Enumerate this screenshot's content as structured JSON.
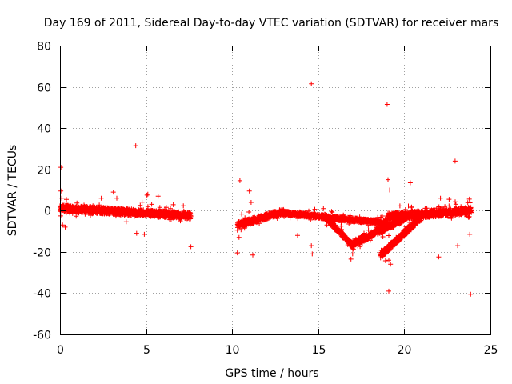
{
  "chart_data": {
    "type": "scatter",
    "title": "Day 169 of 2011, Sidereal Day-to-day VTEC variation (SDTVAR) for receiver mars",
    "xlabel": "GPS time / hours",
    "ylabel": "SDTVAR / TECUs",
    "xlim": [
      0,
      25
    ],
    "ylim": [
      -60,
      80
    ],
    "xticks": [
      "0",
      "5",
      "10",
      "15",
      "20",
      "25"
    ],
    "yticks": [
      "-60",
      "-40",
      "-20",
      "0",
      "20",
      "40",
      "60",
      "80"
    ],
    "grid": true,
    "marker": "+",
    "color": "#ff0000",
    "series": [
      {
        "name": "SDTVAR",
        "bands": [
          {
            "x0": 0.0,
            "x1": 7.6,
            "y0": 1.2,
            "y1": -2.5,
            "spread": 3.2
          },
          {
            "x0": 10.3,
            "x1": 13.0,
            "y0": -7.0,
            "y1": -0.5,
            "spread": 3.0
          },
          {
            "x0": 12.8,
            "x1": 19.0,
            "y0": -1.0,
            "y1": -6.0,
            "spread": 2.0
          },
          {
            "x0": 15.5,
            "x1": 17.0,
            "y0": -4.0,
            "y1": -17.0,
            "spread": 2.5
          },
          {
            "x0": 17.0,
            "x1": 20.0,
            "y0": -16.0,
            "y1": -4.0,
            "spread": 3.0
          },
          {
            "x0": 18.6,
            "x1": 21.0,
            "y0": -22.0,
            "y1": -3.0,
            "spread": 3.0
          },
          {
            "x0": 19.0,
            "x1": 23.9,
            "y0": -3.0,
            "y1": 0.0,
            "spread": 3.5
          }
        ],
        "points": [
          [
            0.05,
            21
          ],
          [
            0.05,
            9.5
          ],
          [
            0.1,
            6
          ],
          [
            0.15,
            -7
          ],
          [
            0.3,
            -8
          ],
          [
            2.4,
            6
          ],
          [
            3.1,
            9
          ],
          [
            3.3,
            6
          ],
          [
            4.4,
            31.5
          ],
          [
            4.45,
            -11
          ],
          [
            4.9,
            -11.5
          ],
          [
            5.05,
            7.5
          ],
          [
            5.1,
            8
          ],
          [
            5.7,
            7
          ],
          [
            7.6,
            -17.5
          ],
          [
            10.45,
            14.5
          ],
          [
            10.3,
            -20.5
          ],
          [
            10.4,
            -13
          ],
          [
            11.0,
            9.5
          ],
          [
            11.1,
            4
          ],
          [
            11.2,
            -21.5
          ],
          [
            13.8,
            -12
          ],
          [
            14.6,
            61.5
          ],
          [
            14.6,
            -17
          ],
          [
            14.65,
            -21
          ],
          [
            15.3,
            1
          ],
          [
            15.5,
            -7
          ],
          [
            16.9,
            -23.5
          ],
          [
            17.0,
            -21
          ],
          [
            18.6,
            -6
          ],
          [
            19.0,
            51.5
          ],
          [
            19.05,
            15
          ],
          [
            19.15,
            10
          ],
          [
            19.1,
            -24
          ],
          [
            19.2,
            -26
          ],
          [
            19.1,
            -39
          ],
          [
            20.35,
            13.5
          ],
          [
            20.1,
            -11
          ],
          [
            22.0,
            -22.5
          ],
          [
            22.1,
            6
          ],
          [
            22.6,
            5.5
          ],
          [
            22.95,
            24
          ],
          [
            23.1,
            -17
          ],
          [
            23.8,
            -11.5
          ],
          [
            23.85,
            -40.5
          ]
        ]
      }
    ]
  }
}
